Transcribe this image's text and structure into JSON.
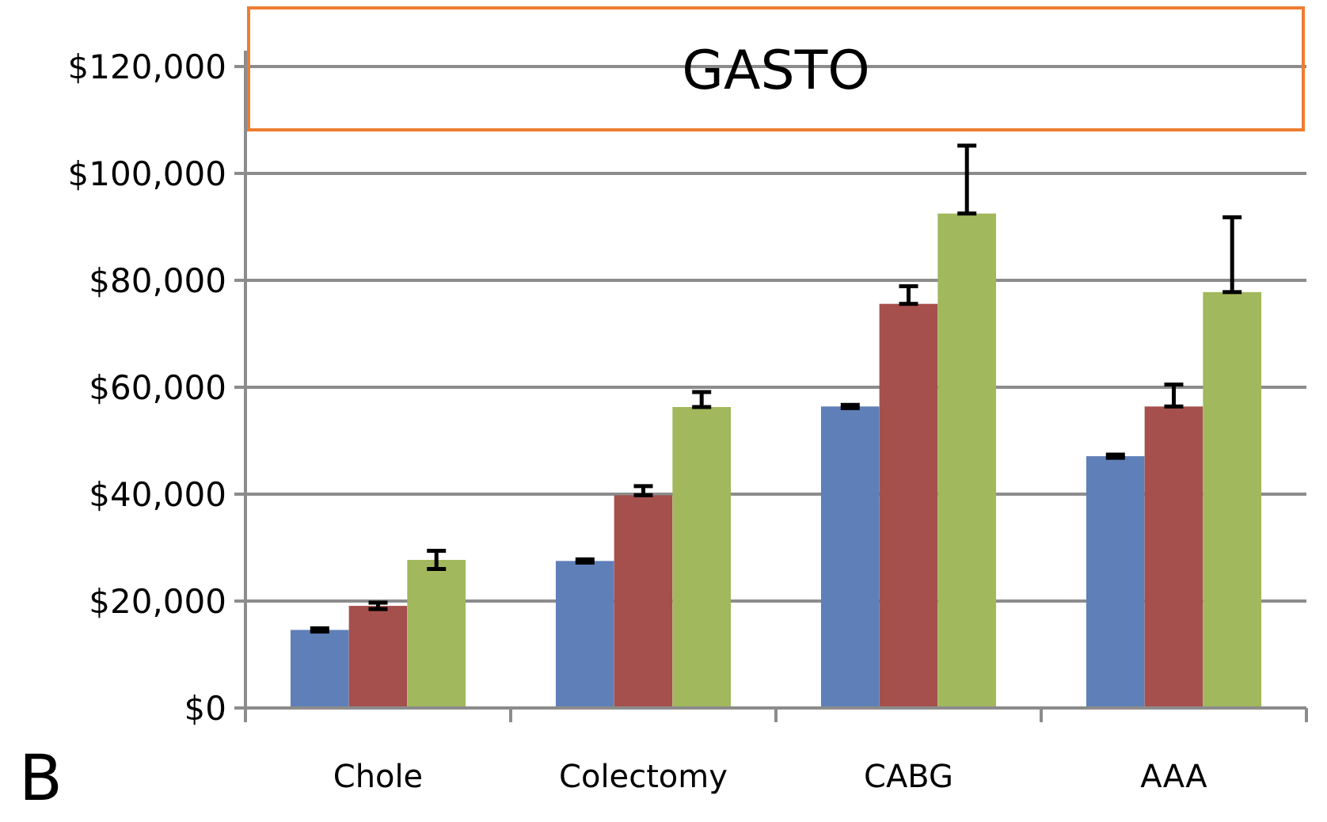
{
  "chart_data": {
    "type": "bar",
    "title": "GASTO",
    "annotations": [
      "B"
    ],
    "categories": [
      "Chole",
      "Colectomy",
      "CABG",
      "AAA"
    ],
    "series": [
      {
        "color": "#5f7fb8",
        "values": [
          14600,
          27500,
          56400,
          47100
        ],
        "errors": [
          300,
          300,
          300,
          300
        ]
      },
      {
        "color": "#a5504d",
        "values": [
          19100,
          39800,
          75600,
          56400
        ],
        "errors": [
          600,
          [
            39800,
            41500
          ],
          [
            75600,
            78900
          ],
          [
            56400,
            60500
          ]
        ]
      },
      {
        "color": "#a1b85c",
        "values": [
          27700,
          56300,
          92500,
          77800
        ],
        "errors": [
          1700,
          [
            56300,
            59100
          ],
          [
            92500,
            105200
          ],
          [
            77800,
            91800
          ]
        ]
      }
    ],
    "ylim": [
      0,
      120000
    ],
    "yticks": [
      {
        "value": 0,
        "label": "$0"
      },
      {
        "value": 20000,
        "label": "$20,000"
      },
      {
        "value": 40000,
        "label": "$40,000"
      },
      {
        "value": 60000,
        "label": "$60,000"
      },
      {
        "value": 80000,
        "label": "$80,000"
      },
      {
        "value": 100000,
        "label": "$100,000"
      },
      {
        "value": 120000,
        "label": "$120,000"
      }
    ],
    "grid": "y"
  }
}
